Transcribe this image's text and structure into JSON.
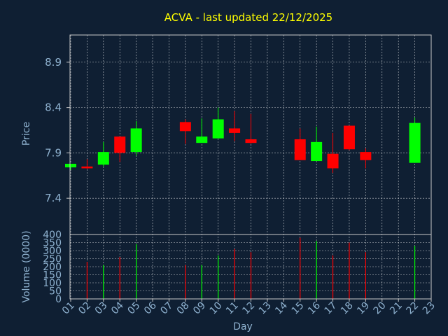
{
  "chart_data": {
    "type": "candlestick",
    "title": "ACVA - last updated 22/12/2025",
    "xlabel": "Day",
    "ylabel": "Price",
    "volume_label": "Volume (0000)",
    "x_ticks": [
      "01",
      "02",
      "03",
      "04",
      "05",
      "06",
      "07",
      "08",
      "09",
      "10",
      "11",
      "12",
      "13",
      "14",
      "15",
      "16",
      "17",
      "18",
      "19",
      "20",
      "21",
      "22",
      "23"
    ],
    "y_ticks": [
      "7.4",
      "7.9",
      "8.4",
      "8.9"
    ],
    "volume_ticks": [
      "0",
      "50",
      "100",
      "150",
      "200",
      "250",
      "300",
      "350",
      "400"
    ],
    "ylim": [
      7.0,
      9.2
    ],
    "volume_ylim": [
      0,
      400
    ],
    "grid": true,
    "colors": {
      "up": "#00ff00",
      "down": "#ff0000",
      "background": "#0f1f33",
      "title": "#ffff00",
      "axis_text": "#8fb2d0"
    },
    "candles": [
      {
        "day": 1,
        "open": 7.74,
        "high": 7.78,
        "low": 7.71,
        "close": 7.78,
        "volume": 0
      },
      {
        "day": 2,
        "open": 7.75,
        "high": 7.83,
        "low": 7.72,
        "close": 7.73,
        "volume": 230
      },
      {
        "day": 3,
        "open": 7.77,
        "high": 8.02,
        "low": 7.75,
        "close": 7.91,
        "volume": 210
      },
      {
        "day": 4,
        "open": 8.08,
        "high": 8.08,
        "low": 7.8,
        "close": 7.9,
        "volume": 260
      },
      {
        "day": 5,
        "open": 7.91,
        "high": 8.25,
        "low": 7.87,
        "close": 8.17,
        "volume": 340
      },
      {
        "day": 8,
        "open": 8.24,
        "high": 8.27,
        "low": 8.0,
        "close": 8.14,
        "volume": 210
      },
      {
        "day": 9,
        "open": 8.01,
        "high": 8.28,
        "low": 8.01,
        "close": 8.08,
        "volume": 210
      },
      {
        "day": 10,
        "open": 8.06,
        "high": 8.4,
        "low": 8.06,
        "close": 8.27,
        "volume": 270
      },
      {
        "day": 11,
        "open": 8.17,
        "high": 8.36,
        "low": 8.03,
        "close": 8.12,
        "volume": 310
      },
      {
        "day": 12,
        "open": 8.05,
        "high": 8.33,
        "low": 8.0,
        "close": 8.01,
        "volume": 290
      },
      {
        "day": 15,
        "open": 8.05,
        "high": 8.17,
        "low": 7.82,
        "close": 7.82,
        "volume": 380
      },
      {
        "day": 16,
        "open": 7.81,
        "high": 8.19,
        "low": 7.81,
        "close": 8.02,
        "volume": 360
      },
      {
        "day": 17,
        "open": 7.89,
        "high": 8.12,
        "low": 7.68,
        "close": 7.73,
        "volume": 270
      },
      {
        "day": 18,
        "open": 8.2,
        "high": 8.2,
        "low": 7.93,
        "close": 7.94,
        "volume": 350
      },
      {
        "day": 19,
        "open": 7.91,
        "high": 7.95,
        "low": 7.73,
        "close": 7.82,
        "volume": 290
      },
      {
        "day": 22,
        "open": 7.79,
        "high": 8.29,
        "low": 7.79,
        "close": 8.23,
        "volume": 330
      }
    ]
  }
}
